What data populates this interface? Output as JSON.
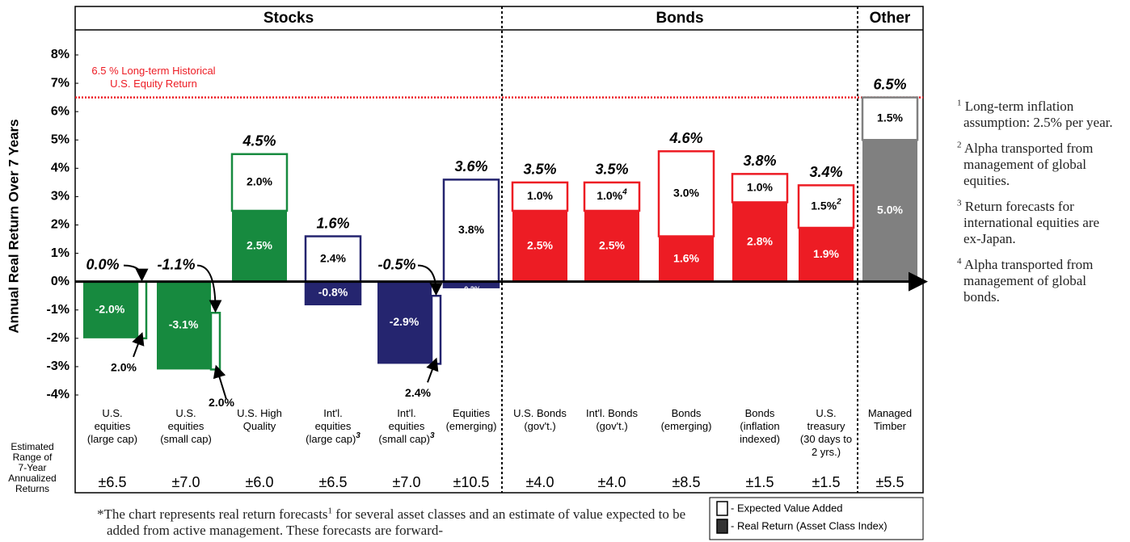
{
  "chart_data": {
    "type": "bar",
    "y_label": "Annual Real Return Over 7 Years",
    "sections": [
      "Stocks",
      "Bonds",
      "Other"
    ],
    "categories": [
      "U.S.\nequities\n(large cap)",
      "U.S.\nequities\n(small cap)",
      "U.S. High\nQuality",
      "Int'l.\nequities\n(large cap)",
      "Int'l.\nequities\n(small cap)",
      "Equities\n(emerging)",
      "U.S. Bonds\n(gov't.)",
      "Int'l. Bonds\n(gov't.)",
      "Bonds\n(emerging)",
      "Bonds\n(inflation\nindexed)",
      "U.S.\ntreasury\n(30 days to\n2 yrs.)",
      "Managed\nTimber"
    ],
    "category_notes": [
      null,
      null,
      null,
      "3",
      "3",
      null,
      null,
      null,
      null,
      null,
      null,
      null
    ],
    "colors": [
      "#178a3f",
      "#178a3f",
      "#178a3f",
      "#25256f",
      "#25256f",
      "#25256f",
      "#ed1c24",
      "#ed1c24",
      "#ed1c24",
      "#ed1c24",
      "#ed1c24",
      "#808080"
    ],
    "series": [
      {
        "name": "- Real Return (Asset Class Index)",
        "color": "#333333",
        "values": [
          -2.0,
          -3.1,
          2.5,
          -0.8,
          -2.9,
          -0.2,
          2.5,
          2.5,
          1.6,
          2.8,
          1.9,
          5.0
        ],
        "value_labels": [
          "-2.0%",
          "-3.1%",
          "2.5%",
          "-0.8%",
          "-2.9%",
          "-0.2%",
          "2.5%",
          "2.5%",
          "1.6%",
          "2.8%",
          "1.9%",
          "5.0%"
        ]
      },
      {
        "name": "- Expected Value Added",
        "color": "#ffffff",
        "values": [
          2.0,
          2.0,
          2.0,
          2.4,
          2.4,
          3.8,
          1.0,
          1.0,
          3.0,
          1.0,
          1.5,
          1.5
        ],
        "value_labels": [
          "2.0%",
          "2.0%",
          "2.0%",
          "2.4%",
          "2.4%",
          "3.8%",
          "1.0%",
          "1.0%",
          "3.0%",
          "1.0%",
          "1.5%",
          "1.5%"
        ],
        "value_label_notes": [
          null,
          null,
          null,
          null,
          null,
          null,
          null,
          "4",
          null,
          null,
          "2",
          null
        ]
      }
    ],
    "totals": [
      0.0,
      -1.1,
      4.5,
      1.6,
      -0.5,
      3.6,
      3.5,
      3.5,
      4.6,
      3.8,
      3.4,
      6.5
    ],
    "total_labels": [
      "0.0%",
      "-1.1%",
      "4.5%",
      "1.6%",
      "-0.5%",
      "3.6%",
      "3.5%",
      "3.5%",
      "4.6%",
      "3.8%",
      "3.4%",
      "6.5%"
    ],
    "range_title": "Estimated\nRange of\n7-Year\nAnnualized\nReturns",
    "ranges": [
      6.5,
      7.0,
      6.0,
      6.5,
      7.0,
      10.5,
      4.0,
      4.0,
      8.5,
      1.5,
      1.5,
      5.5
    ],
    "range_labels": [
      "±6.5",
      "±7.0",
      "±6.0",
      "±6.5",
      "±7.0",
      "±10.5",
      "±4.0",
      "±4.0",
      "±8.5",
      "±1.5",
      "±1.5",
      "±5.5"
    ],
    "reference_line": {
      "value": 6.5,
      "color": "#ed1c24",
      "label": "6.5 % Long-term Historical\nU.S. Equity Return"
    },
    "ylim": [
      -4,
      8
    ],
    "yticks": [
      {
        "value": -4,
        "label": "-4%"
      },
      {
        "value": -3,
        "label": "-3%"
      },
      {
        "value": -2,
        "label": "-2%"
      },
      {
        "value": -1,
        "label": "-1%"
      },
      {
        "value": 0,
        "label": "0%"
      },
      {
        "value": 1,
        "label": "1%"
      },
      {
        "value": 2,
        "label": "2%"
      },
      {
        "value": 3,
        "label": "3%"
      },
      {
        "value": 4,
        "label": "4%"
      },
      {
        "value": 5,
        "label": "5%"
      },
      {
        "value": 6,
        "label": "6%"
      },
      {
        "value": 7,
        "label": "7%"
      },
      {
        "value": 8,
        "label": "8%"
      }
    ],
    "footnotes": [
      {
        "marker": "1",
        "text": "Long-term inflation assumption:  2.5% per year."
      },
      {
        "marker": "2",
        "text": "Alpha transported from management of global equities."
      },
      {
        "marker": "3",
        "text": "Return forecasts for international equities are ex-Japan."
      },
      {
        "marker": "4",
        "text": "Alpha transported from management of global bonds."
      }
    ],
    "note": {
      "before": "*The chart represents real return forecasts",
      "marker": "1",
      "after": " for several asset classes and an estimate of value expected to be added from active management.  These forecasts are forward-"
    }
  }
}
